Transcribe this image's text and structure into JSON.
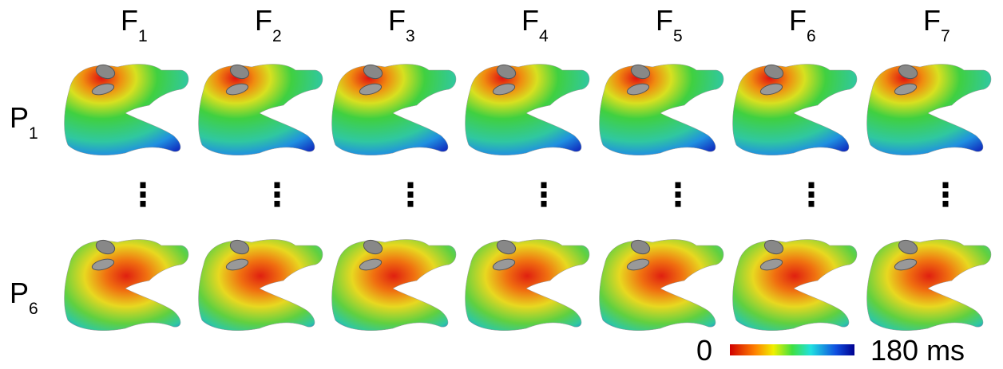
{
  "columns": [
    {
      "letter": "F",
      "index": "1"
    },
    {
      "letter": "F",
      "index": "2"
    },
    {
      "letter": "F",
      "index": "3"
    },
    {
      "letter": "F",
      "index": "4"
    },
    {
      "letter": "F",
      "index": "5"
    },
    {
      "letter": "F",
      "index": "6"
    },
    {
      "letter": "F",
      "index": "7"
    }
  ],
  "rows": [
    {
      "letter": "P",
      "index": "1"
    },
    {
      "letter": "P",
      "index": "6"
    }
  ],
  "ellipsis": "⋮",
  "colorbar": {
    "min_label": "0",
    "max_label": "180 ms"
  }
}
